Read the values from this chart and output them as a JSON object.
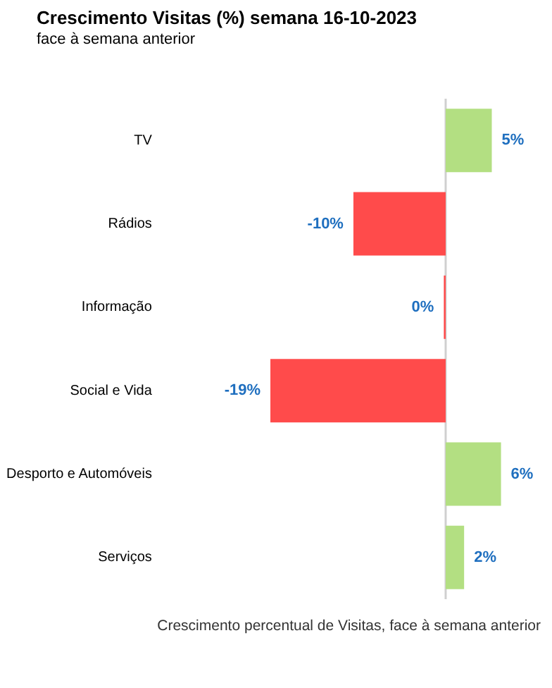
{
  "chart_data": {
    "type": "bar",
    "orientation": "horizontal",
    "title": "Crescimento Visitas (%) semana 16-10-2023",
    "subtitle": "face à semana anterior",
    "categories": [
      "TV",
      "Rádios",
      "Informação",
      "Social e Vida",
      "Desporto e Automóveis",
      "Serviços"
    ],
    "values": [
      5,
      -10,
      -0.2,
      -19,
      6,
      2
    ],
    "colors": [
      "#b3df82",
      "#ff4b4b",
      "#ff4b4b",
      "#ff4b4b",
      "#b3df82",
      "#b3df82"
    ],
    "value_labels": [
      "5%",
      "-10%",
      "0%",
      "-19%",
      "6%",
      "2%"
    ],
    "tick_labels": "y",
    "ref_lines": [
      {
        "axis": "x",
        "value": 0,
        "color": "#d0d0d0"
      }
    ],
    "annotations": [
      "Crescimento percentual de Visitas, face à semana anterior"
    ]
  }
}
